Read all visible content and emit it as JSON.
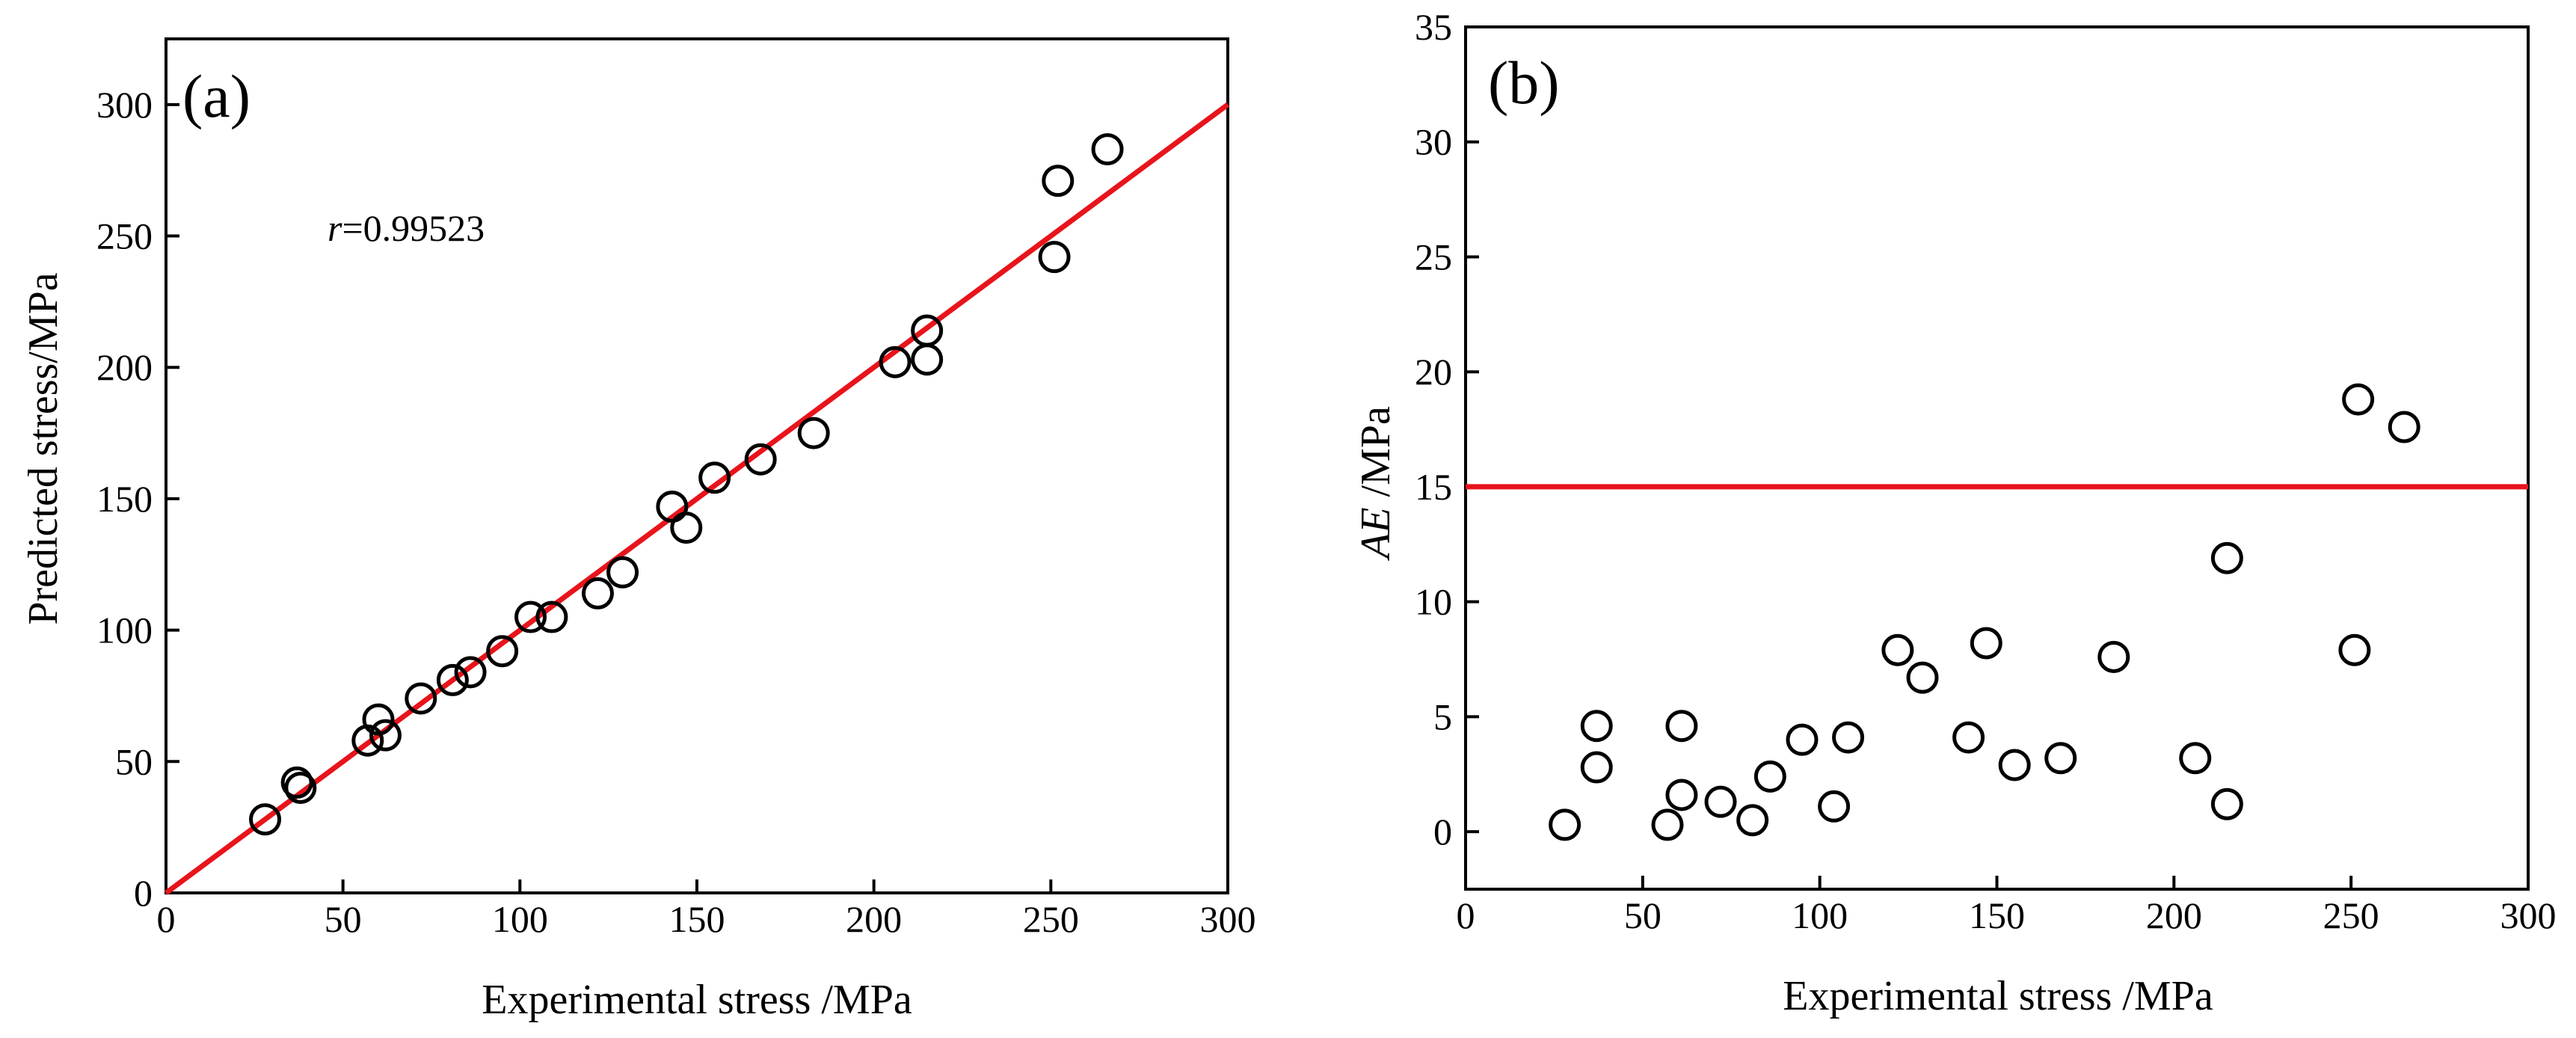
{
  "chart_data": [
    {
      "type": "scatter",
      "panel_label": "(a)",
      "xlabel": "Experimental stress /MPa",
      "ylabel": "Predicted stress/MPa",
      "xlim": [
        0,
        300
      ],
      "ylim": [
        0,
        325
      ],
      "xticks": [
        0,
        50,
        100,
        150,
        200,
        250,
        300
      ],
      "yticks": [
        0,
        50,
        100,
        150,
        200,
        250,
        300
      ],
      "annotation": {
        "r_symbol": "r",
        "r_value": "=0.99523"
      },
      "reference_line": {
        "name": "y = x",
        "color": "#e8141b",
        "x": [
          0,
          300
        ],
        "y": [
          0,
          300
        ]
      },
      "series": [
        {
          "name": "Predicted vs experimental",
          "x": [
            28,
            37,
            38,
            57,
            60,
            62,
            72,
            81,
            86,
            95,
            103,
            109,
            122,
            129,
            143,
            147,
            155,
            168,
            183,
            206,
            215,
            215,
            251,
            252,
            266
          ],
          "y": [
            28,
            42,
            40,
            58,
            66,
            60,
            74,
            81,
            84,
            92,
            105,
            105,
            114,
            122,
            147,
            139,
            158,
            165,
            175,
            202,
            203,
            214,
            242,
            271,
            283
          ]
        }
      ]
    },
    {
      "type": "scatter",
      "panel_label": "(b)",
      "xlabel": "Experimental stress /MPa",
      "ylabel_italic": "AE",
      "ylabel_rest": " /MPa",
      "xlim": [
        0,
        300
      ],
      "ylim": [
        -2.5,
        35
      ],
      "xticks": [
        0,
        50,
        100,
        150,
        200,
        250,
        300
      ],
      "yticks": [
        0,
        5,
        10,
        15,
        20,
        25,
        30,
        35
      ],
      "reference_line": {
        "name": "AE = 15 MPa",
        "color": "#e8141b",
        "y": 15
      },
      "series": [
        {
          "name": "Absolute error",
          "x": [
            28,
            37,
            37,
            57,
            61,
            61,
            72,
            81,
            86,
            95,
            104,
            108,
            122,
            129,
            142,
            147,
            155,
            168,
            183,
            206,
            215,
            215,
            251,
            252,
            265
          ],
          "y": [
            0.3,
            2.8,
            4.6,
            0.3,
            1.6,
            4.6,
            1.3,
            0.5,
            2.4,
            4.0,
            1.1,
            4.1,
            7.9,
            6.7,
            4.1,
            8.2,
            2.9,
            3.2,
            7.6,
            3.2,
            1.2,
            11.9,
            7.9,
            18.8,
            17.6
          ]
        }
      ]
    }
  ]
}
